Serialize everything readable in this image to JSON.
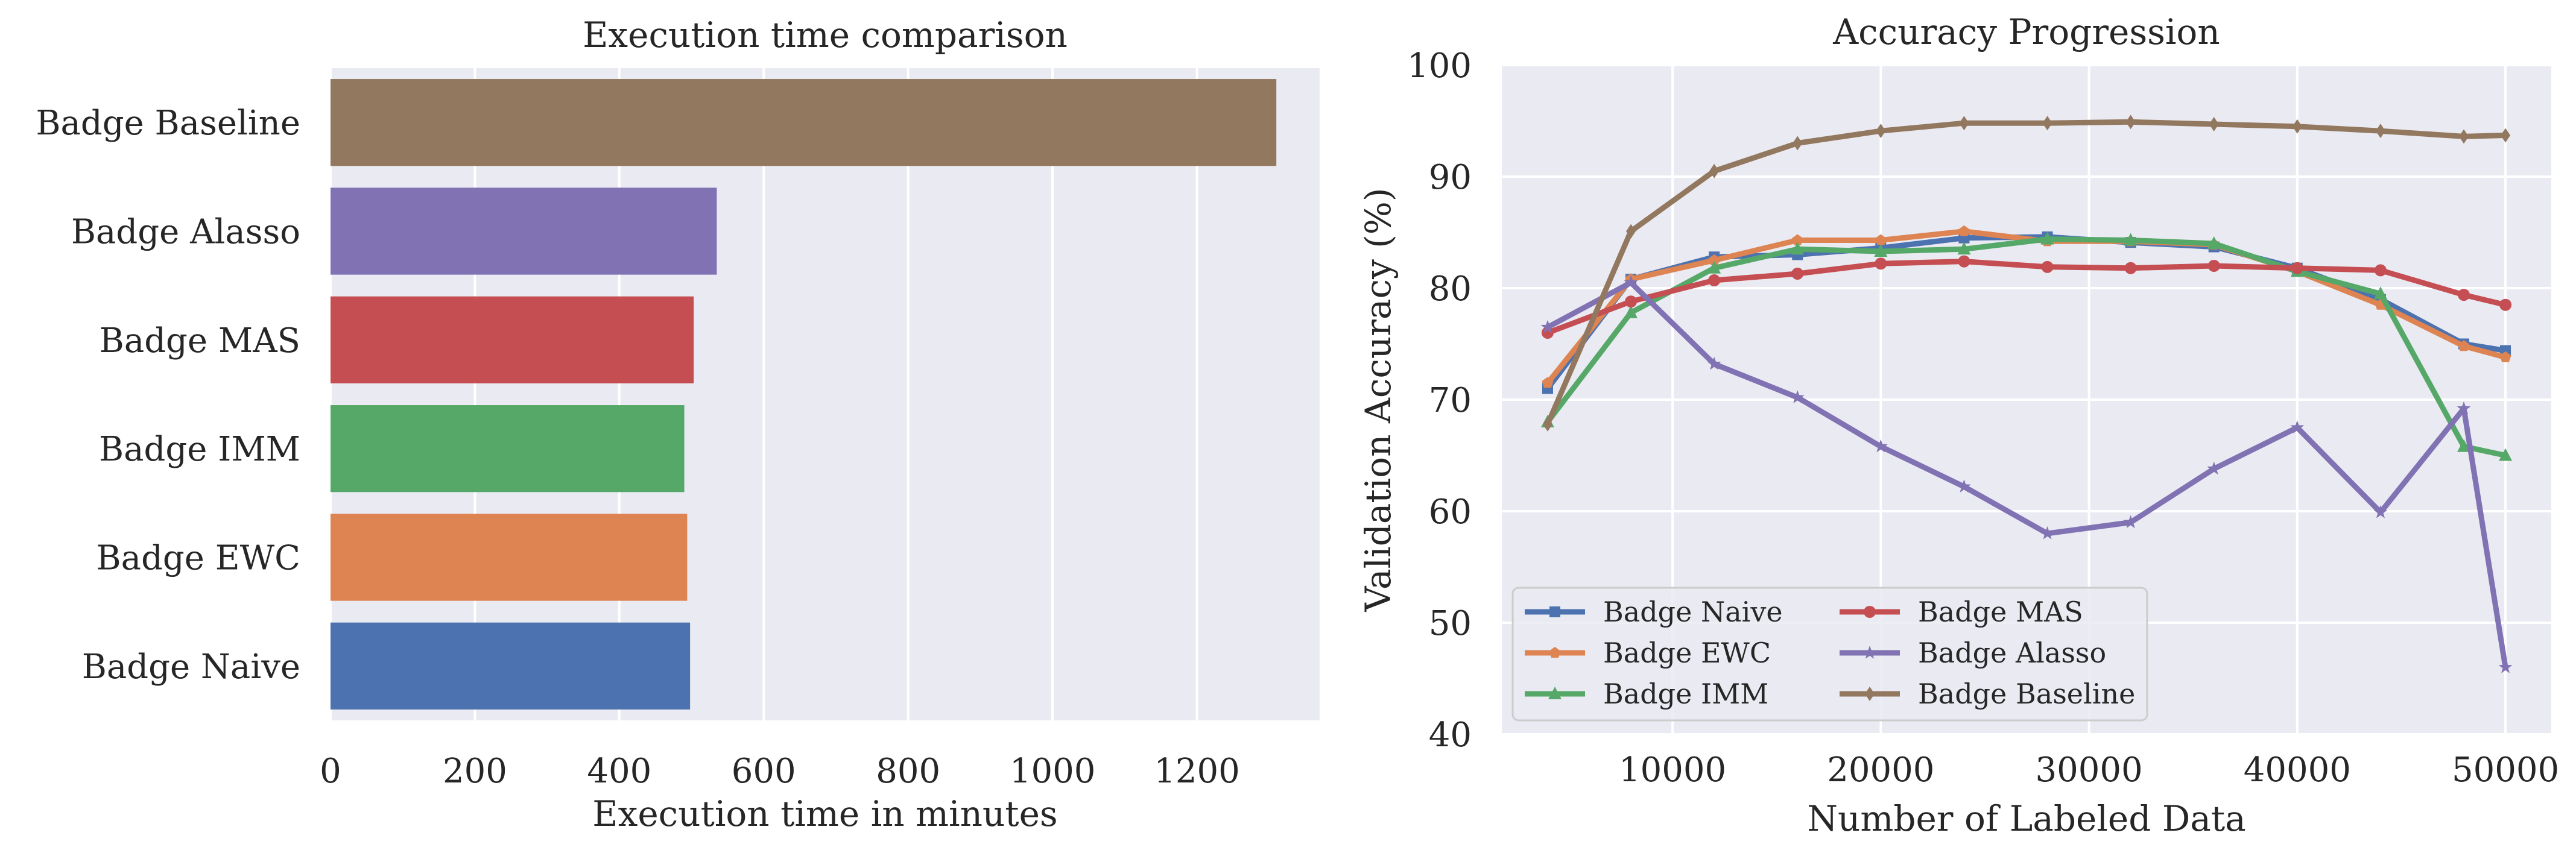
{
  "colors": {
    "plot_bg": "#eaeaf2",
    "grid": "#ffffff",
    "Badge Naive": "#4c72b0",
    "Badge EWC": "#dd8452",
    "Badge IMM": "#55a868",
    "Badge MAS": "#c44e52",
    "Badge Alasso": "#8172b3",
    "Badge Baseline": "#937860"
  },
  "chart_data": [
    {
      "type": "bar",
      "orientation": "horizontal",
      "title": "Execution time comparison",
      "xlabel": "Execution time in minutes",
      "ylabel": "",
      "xlim": [
        0,
        1370
      ],
      "xticks": [
        0,
        200,
        400,
        600,
        800,
        1000,
        1200
      ],
      "grid": true,
      "categories": [
        "Badge Baseline",
        "Badge Alasso",
        "Badge MAS",
        "Badge IMM",
        "Badge EWC",
        "Badge Naive"
      ],
      "values": [
        1310,
        535,
        503,
        490,
        494,
        498
      ]
    },
    {
      "type": "line",
      "title": "Accuracy Progression",
      "xlabel": "Number of Labeled Data",
      "ylabel": "Validation Accuracy (%)",
      "xlim": [
        1800,
        52200
      ],
      "ylim": [
        40,
        100
      ],
      "xticks": [
        10000,
        20000,
        30000,
        40000,
        50000
      ],
      "yticks": [
        40,
        50,
        60,
        70,
        80,
        90,
        100
      ],
      "grid": true,
      "legend_position": "lower-left",
      "x": [
        4000,
        8000,
        12000,
        16000,
        20000,
        24000,
        28000,
        32000,
        36000,
        40000,
        44000,
        48000,
        50000
      ],
      "series": [
        {
          "name": "Badge Naive",
          "marker": "square",
          "values": [
            71.0,
            80.8,
            82.8,
            83.0,
            83.6,
            84.5,
            84.6,
            84.1,
            83.7,
            81.8,
            79.0,
            75.0,
            74.4
          ]
        },
        {
          "name": "Badge EWC",
          "marker": "pentagon",
          "values": [
            71.5,
            80.8,
            82.5,
            84.3,
            84.3,
            85.1,
            84.2,
            84.2,
            83.9,
            81.5,
            78.5,
            74.8,
            73.8
          ]
        },
        {
          "name": "Badge IMM",
          "marker": "triangle",
          "values": [
            68.0,
            77.8,
            81.8,
            83.5,
            83.3,
            83.5,
            84.4,
            84.3,
            84.0,
            81.5,
            79.5,
            65.8,
            65.0
          ]
        },
        {
          "name": "Badge MAS",
          "marker": "circle",
          "values": [
            76.0,
            78.8,
            80.7,
            81.3,
            82.2,
            82.4,
            81.9,
            81.8,
            82.0,
            81.8,
            81.6,
            79.4,
            78.5
          ]
        },
        {
          "name": "Badge Alasso",
          "marker": "star",
          "values": [
            76.5,
            80.5,
            73.2,
            70.2,
            65.8,
            62.2,
            58.0,
            59.0,
            63.8,
            67.5,
            59.9,
            69.2,
            46.0
          ]
        },
        {
          "name": "Badge Baseline",
          "marker": "diamond",
          "values": [
            67.8,
            85.1,
            90.5,
            93.0,
            94.1,
            94.8,
            94.8,
            94.9,
            94.7,
            94.5,
            94.1,
            93.6,
            93.7
          ]
        }
      ]
    }
  ]
}
